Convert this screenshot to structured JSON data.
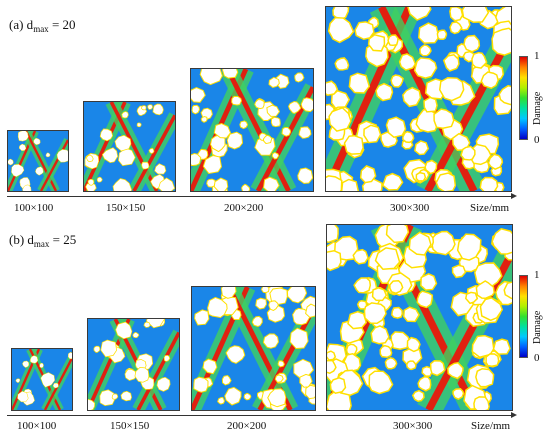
{
  "panels": [
    {
      "id": "a",
      "label_prefix": "(a) d",
      "label_sub": "max",
      "label_suffix": " = 20",
      "samples": [
        "100×100",
        "150×150",
        "200×200",
        "300×300"
      ],
      "axis_label": "Size/mm"
    },
    {
      "id": "b",
      "label_prefix": "(b) d",
      "label_sub": "max",
      "label_suffix": " = 25",
      "samples": [
        "100×100",
        "150×150",
        "200×200",
        "300×300"
      ],
      "axis_label": "Size/mm"
    }
  ],
  "colorbar": {
    "label": "Damage",
    "max_label": "1",
    "min_label": "0",
    "colors": [
      "#0000c8",
      "#0060ff",
      "#00c8ff",
      "#00e0a0",
      "#30e030",
      "#b0f000",
      "#ffe000",
      "#ff8000",
      "#e00000"
    ]
  },
  "colors": {
    "background_field": "#1a86e8",
    "aggregate": "#ffffff",
    "band_high": "#e02010",
    "band_mid": "#40d060"
  }
}
